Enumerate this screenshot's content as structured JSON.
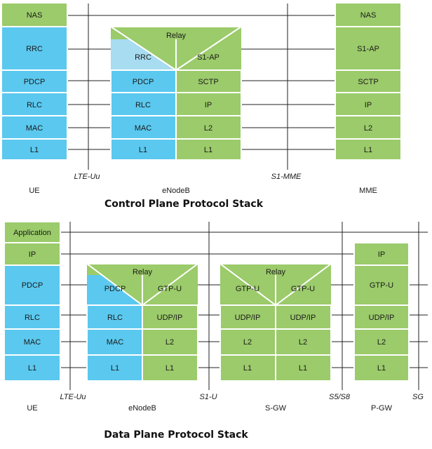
{
  "colors": {
    "blue": "#5bc8ef",
    "green": "#9bcb6a",
    "light_blue": "#a7dcf1",
    "line": "#222222"
  },
  "control": {
    "ue_layers": [
      "NAS",
      "RRC",
      "PDCP",
      "RLC",
      "MAC",
      "L1"
    ],
    "relay": "Relay",
    "enb_left": [
      "RRC",
      "PDCP",
      "RLC",
      "MAC",
      "L1"
    ],
    "enb_right": [
      "S1-AP",
      "SCTP",
      "IP",
      "L2",
      "L1"
    ],
    "mme_layers": [
      "NAS",
      "S1-AP",
      "SCTP",
      "IP",
      "L2",
      "L1"
    ],
    "interfaces": {
      "lte_uu": "LTE-Uu",
      "s1_mme": "S1-MME"
    },
    "nodes": {
      "ue": "UE",
      "enodeb": "eNodeB",
      "mme": "MME"
    },
    "caption": "Control Plane Protocol Stack"
  },
  "data": {
    "ue_layers": [
      "Application",
      "IP",
      "PDCP",
      "RLC",
      "MAC",
      "L1"
    ],
    "relay": "Relay",
    "enb_left": [
      "PDCP",
      "RLC",
      "MAC",
      "L1"
    ],
    "enb_right": [
      "GTP-U",
      "UDP/IP",
      "L2",
      "L1"
    ],
    "sgw_left": [
      "GTP-U",
      "UDP/IP",
      "L2",
      "L1"
    ],
    "sgw_right": [
      "GTP-U",
      "UDP/IP",
      "L2",
      "L1"
    ],
    "pgw_layers": [
      "IP",
      "GTP-U",
      "UDP/IP",
      "L2",
      "L1"
    ],
    "interfaces": {
      "lte_uu": "LTE-Uu",
      "s1_u": "S1-U",
      "s5_s8": "S5/S8",
      "sg": "SG"
    },
    "nodes": {
      "ue": "UE",
      "enodeb": "eNodeB",
      "sgw": "S-GW",
      "pgw": "P-GW"
    },
    "caption": "Data Plane Protocol Stack"
  }
}
